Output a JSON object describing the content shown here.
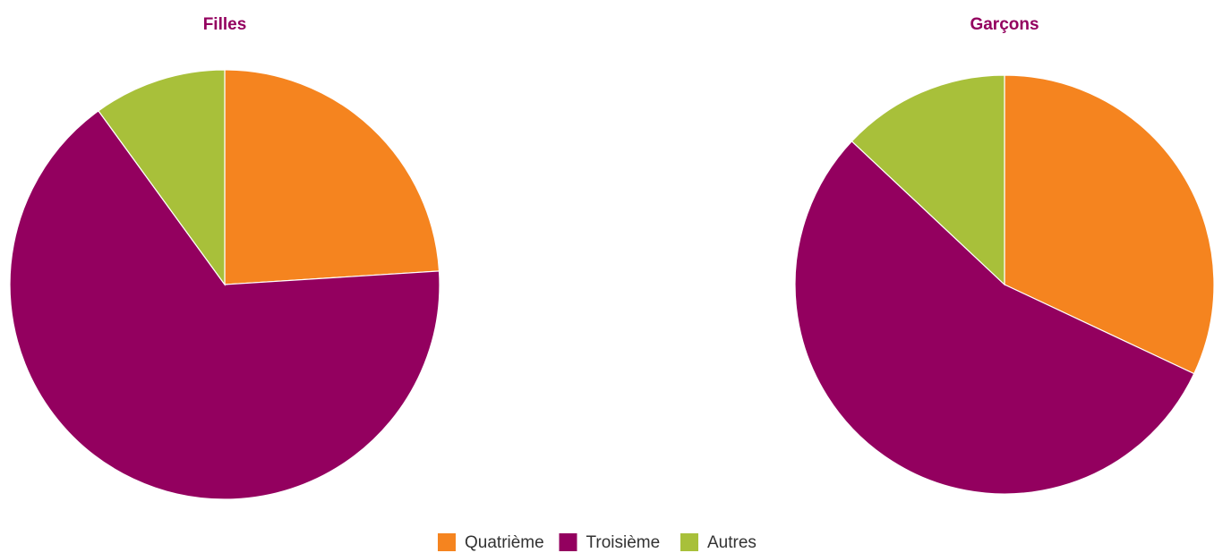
{
  "chart_data": [
    {
      "type": "pie",
      "title": "Filles",
      "categories": [
        "Quatrième",
        "Troisième",
        "Autres"
      ],
      "values": [
        24,
        66,
        10
      ],
      "colors": [
        "#f5841f",
        "#93005f",
        "#a8c03a"
      ]
    },
    {
      "type": "pie",
      "title": "Garçons",
      "categories": [
        "Quatrième",
        "Troisième",
        "Autres"
      ],
      "values": [
        32,
        55,
        13
      ],
      "colors": [
        "#f5841f",
        "#93005f",
        "#a8c03a"
      ]
    }
  ]
}
